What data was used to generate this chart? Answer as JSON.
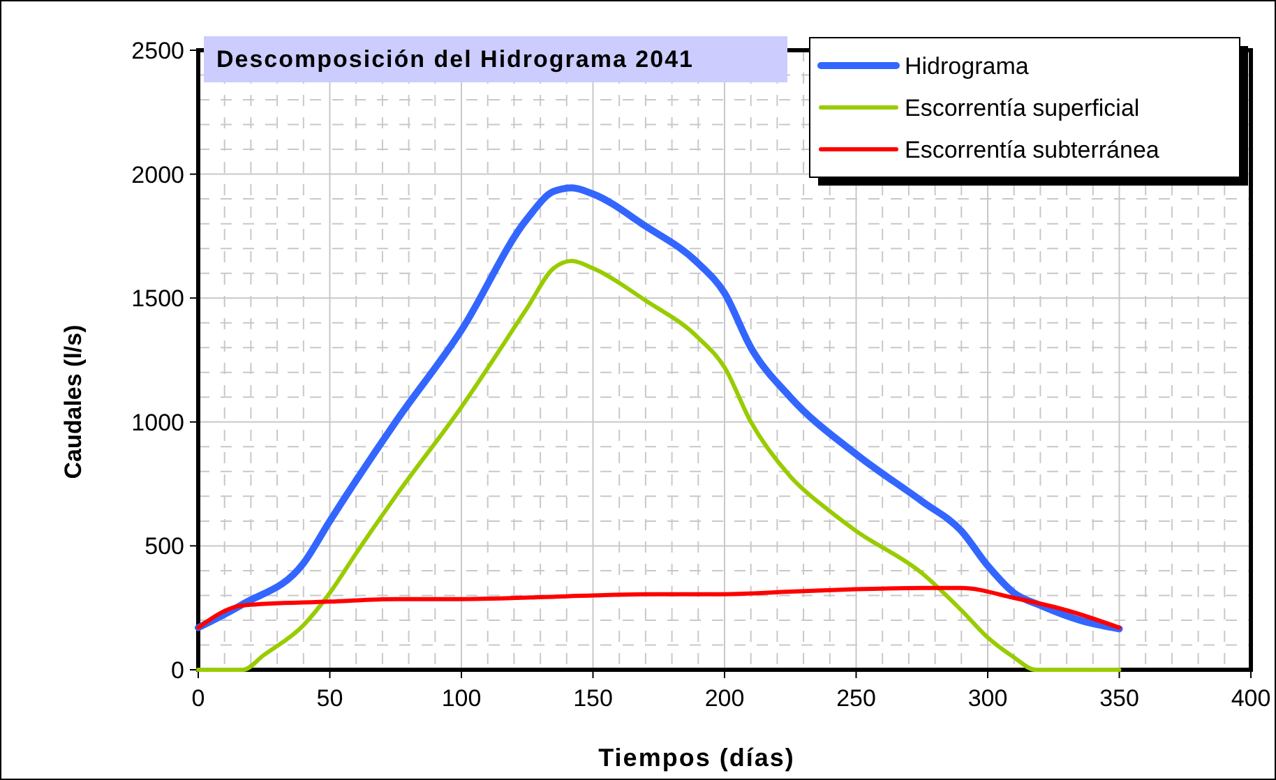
{
  "chart_data": {
    "type": "line",
    "title": "Descomposición del Hidrograma 2041",
    "xlabel": "Tiempos (días)",
    "ylabel": "Caudales (l/s)",
    "xlim": [
      0,
      400
    ],
    "xticks": [
      0,
      50,
      100,
      150,
      200,
      250,
      300,
      350,
      400
    ],
    "ylim": [
      0,
      2500
    ],
    "yticks": [
      0,
      500,
      1000,
      1500,
      2000,
      2500
    ],
    "grid": true,
    "legend": "top right",
    "marker": "none",
    "line_style": "solid",
    "series": [
      {
        "name": "Hidrograma",
        "color": "#3366ff",
        "x": [
          0,
          17,
          40,
          50,
          75,
          100,
          125,
          135,
          142,
          150,
          170,
          190,
          200,
          210,
          225,
          250,
          275,
          290,
          300,
          310,
          320,
          335,
          350
        ],
        "values": [
          170,
          265,
          430,
          600,
          1000,
          1370,
          1820,
          1930,
          1945,
          1920,
          1790,
          1640,
          1520,
          1300,
          1100,
          870,
          680,
          560,
          420,
          310,
          260,
          200,
          165
        ]
      },
      {
        "name": "Escorrentía superficial",
        "color": "#99cc00",
        "x": [
          0,
          17,
          25,
          40,
          50,
          60,
          75,
          100,
          125,
          135,
          142,
          150,
          170,
          190,
          200,
          210,
          225,
          240,
          250,
          275,
          290,
          300,
          310,
          318,
          350
        ],
        "values": [
          0,
          0,
          60,
          180,
          310,
          470,
          700,
          1060,
          1460,
          1620,
          1650,
          1620,
          1490,
          1340,
          1220,
          1000,
          780,
          640,
          560,
          390,
          240,
          130,
          50,
          0,
          0
        ]
      },
      {
        "name": "Escorrentía subterránea",
        "color": "#ff0000",
        "x": [
          0,
          17,
          50,
          75,
          100,
          150,
          170,
          200,
          225,
          250,
          275,
          290,
          310,
          330,
          350
        ],
        "values": [
          170,
          260,
          275,
          285,
          285,
          300,
          305,
          305,
          315,
          325,
          330,
          330,
          290,
          240,
          170
        ]
      }
    ]
  }
}
